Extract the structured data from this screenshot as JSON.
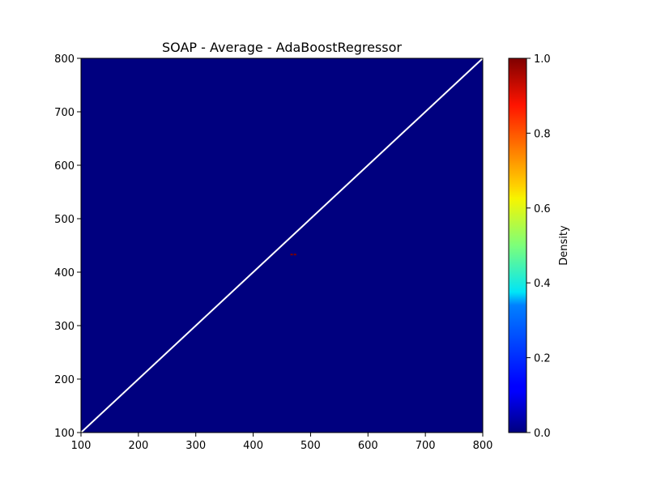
{
  "chart_data": {
    "type": "heatmap",
    "title": "SOAP - Average - AdaBoostRegressor",
    "xlabel": "",
    "ylabel": "",
    "xlim": [
      100,
      800
    ],
    "ylim": [
      100,
      800
    ],
    "x_ticks": [
      "100",
      "200",
      "300",
      "400",
      "500",
      "600",
      "700",
      "800"
    ],
    "y_ticks": [
      "100",
      "200",
      "300",
      "400",
      "500",
      "600",
      "700",
      "800"
    ],
    "background_density": 0.0,
    "hot_cells": [
      {
        "x": 467,
        "y": 433,
        "density": 1.0
      },
      {
        "x": 473,
        "y": 433,
        "density": 1.0
      }
    ],
    "reference_line": {
      "x": [
        100,
        800
      ],
      "y": [
        100,
        800
      ],
      "color": "#ffffff"
    },
    "colorbar": {
      "label": "Density",
      "range": [
        0.0,
        1.0
      ],
      "ticks": [
        "0.0",
        "0.2",
        "0.4",
        "0.6",
        "0.8",
        "1.0"
      ],
      "colormap": "jet"
    },
    "colors": {
      "low": "#00007f",
      "high": "#7f0000"
    }
  }
}
